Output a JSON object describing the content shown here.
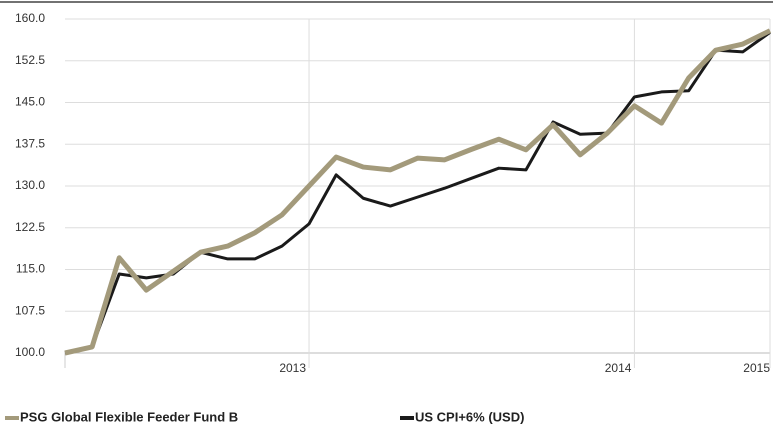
{
  "chart_data": {
    "type": "line",
    "categories": [
      null,
      null,
      null,
      null,
      null,
      null,
      null,
      null,
      null,
      "2013",
      null,
      null,
      null,
      null,
      null,
      null,
      null,
      null,
      null,
      null,
      null,
      "2014",
      null,
      null,
      null,
      null,
      "2015"
    ],
    "series": [
      {
        "name": "PSG Global Flexible Feeder Fund B",
        "color": "#a39a7b",
        "values": [
          100,
          101.1,
          117.1,
          111.3,
          114.7,
          118.1,
          119.2,
          121.6,
          124.8,
          130.0,
          135.2,
          133.4,
          132.9,
          135.0,
          134.7,
          136.6,
          138.4,
          136.5,
          141.0,
          135.6,
          139.5,
          144.4,
          141.3,
          149.4,
          154.4,
          155.5,
          157.9
        ]
      },
      {
        "name": "US CPI+6% (USD)",
        "color": "#1a1a1a",
        "values": [
          100,
          101.1,
          114.2,
          113.5,
          114.2,
          118.1,
          116.9,
          116.9,
          119.2,
          123.2,
          132.0,
          127.8,
          126.4,
          128.0,
          129.6,
          131.4,
          133.2,
          132.9,
          141.5,
          139.3,
          139.5,
          146.0,
          146.9,
          147.1,
          154.4,
          154.1,
          157.6
        ]
      }
    ],
    "ylim": [
      100,
      160
    ],
    "yticks": [
      {
        "value": 100,
        "label": "100.0"
      },
      {
        "value": 107.5,
        "label": "107.5"
      },
      {
        "value": 115,
        "label": "115.0"
      },
      {
        "value": 122.5,
        "label": "122.5"
      },
      {
        "value": 130,
        "label": "130.0"
      },
      {
        "value": 137.5,
        "label": "137.5"
      },
      {
        "value": 145,
        "label": "145.0"
      },
      {
        "value": 152.5,
        "label": "152.5"
      },
      {
        "value": 160,
        "label": "160.0"
      }
    ],
    "grid": true,
    "legend": "bottom"
  }
}
